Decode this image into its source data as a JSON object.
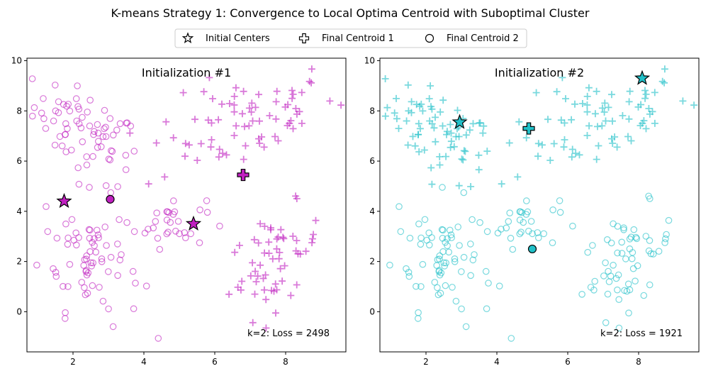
{
  "title": "K-means Strategy 1: Convergence to Local Optima Centroid with Suboptimal Cluster",
  "legend": {
    "placement": "top-center",
    "entries": [
      {
        "label": "Initial Centers",
        "marker": "star"
      },
      {
        "label": "Final Centroid 1",
        "marker": "plus"
      },
      {
        "label": "Final Centroid 2",
        "marker": "circle"
      }
    ]
  },
  "chart_data": [
    {
      "type": "scatter",
      "title": "Initialization #1",
      "annotation": "k=2: Loss = 2498",
      "xlim": [
        0.7,
        9.7
      ],
      "ylim": [
        -1.6,
        10.1
      ],
      "xticks": [
        2,
        4,
        6,
        8
      ],
      "yticks": [
        0,
        2,
        4,
        6,
        8,
        10
      ],
      "grid": false,
      "color": "#c020c0",
      "initial_centers": [
        [
          1.75,
          4.4
        ],
        [
          5.4,
          3.5
        ]
      ],
      "final_centroid_1": [
        6.8,
        5.45
      ],
      "final_centroid_2": [
        3.05,
        4.48
      ],
      "cluster_1_points": "plus markers: upper-right blob (x 4–9.3, y 5–9.6) and lower-right blob (x 6.3–9, y -0.1–4)",
      "cluster_2_points": "open circles: upper-left blob (x 1–3.5, y 5–9.7), lower-left blob (x 1–4.1, y -1.1–4) and middle blob (x 3.8–5.8, y 2.8–4.8)"
    },
    {
      "type": "scatter",
      "title": "Initialization #2",
      "annotation": "k=2: Loss = 1921",
      "xlim": [
        0.7,
        9.7
      ],
      "ylim": [
        -1.6,
        10.1
      ],
      "xticks": [
        2,
        4,
        6,
        8
      ],
      "yticks": [
        0,
        2,
        4,
        6,
        8,
        10
      ],
      "grid": false,
      "color": "#20c0c8",
      "initial_centers": [
        [
          2.95,
          7.55
        ],
        [
          8.1,
          9.3
        ]
      ],
      "final_centroid_1": [
        4.9,
        7.3
      ],
      "final_centroid_2": [
        5.0,
        2.5
      ],
      "cluster_1_points": "plus markers: upper-left, upper-right blobs (y > 5)",
      "cluster_2_points": "open circles: lower-left, middle and lower-right blobs (y < 5)"
    }
  ]
}
